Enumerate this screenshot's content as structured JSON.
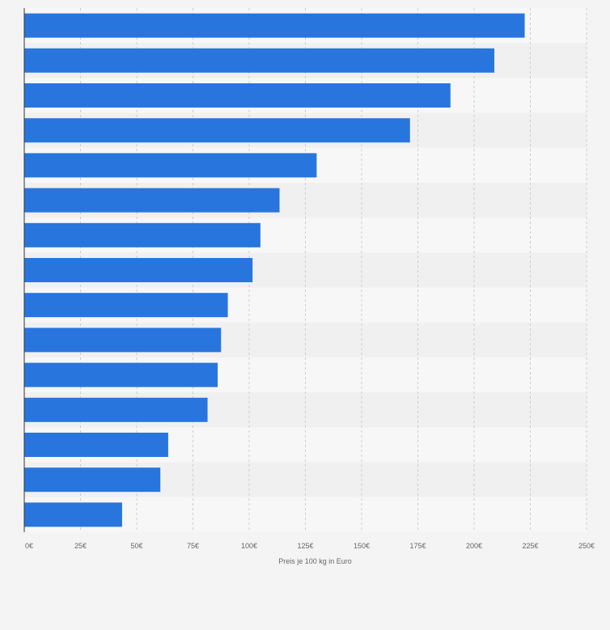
{
  "chart_data": {
    "type": "bar",
    "orientation": "horizontal",
    "categories": [
      "",
      "",
      "",
      "",
      "",
      "",
      "",
      "",
      "",
      "",
      "",
      "",
      "",
      "",
      ""
    ],
    "values": [
      222.5,
      209,
      189.5,
      171.5,
      130,
      113.5,
      105,
      101.5,
      90.5,
      87.5,
      86,
      81.5,
      64,
      60.5,
      43.5
    ],
    "xlabel": "Preis je 100 kg in Euro",
    "xlim": [
      0,
      250
    ],
    "ticks": [
      0,
      25,
      50,
      75,
      100,
      125,
      150,
      175,
      200,
      225,
      250
    ],
    "tick_labels": [
      "0€",
      "25€",
      "50€",
      "75€",
      "100€",
      "125€",
      "150€",
      "175€",
      "200€",
      "225€",
      "250€"
    ],
    "grid": "vertical dashed",
    "legend": "none",
    "colors": {
      "bar": "#2876dd",
      "band_light": "#f7f7f7",
      "band_dark": "#f0f0f0",
      "grid": "#cccccc",
      "axis": "#333333"
    }
  }
}
